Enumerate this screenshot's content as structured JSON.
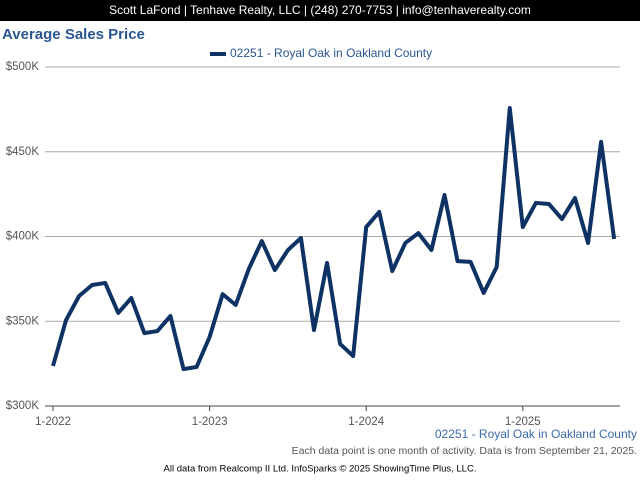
{
  "header": "Scott LaFond | Tenhave Realty, LLC | (248) 270-7753 | info@tenhaverealty.com",
  "chart_data": {
    "type": "line",
    "title": "Average Sales Price",
    "categories": [
      "1-2022",
      null,
      null,
      null,
      null,
      null,
      null,
      null,
      null,
      null,
      null,
      null,
      "1-2023",
      null,
      null,
      null,
      null,
      null,
      null,
      null,
      null,
      null,
      null,
      null,
      "1-2024",
      null,
      null,
      null,
      null,
      null,
      null,
      null,
      null,
      null,
      null,
      null,
      "1-2025",
      null,
      null,
      null,
      null,
      null,
      null,
      null
    ],
    "series": [
      {
        "name": "02251 - Royal Oak in Oakland County",
        "color": "#0d3263",
        "values": [
          323600,
          350700,
          364900,
          371400,
          372600,
          354900,
          363700,
          343000,
          344200,
          353100,
          321800,
          323000,
          340700,
          366000,
          359600,
          380800,
          397300,
          380200,
          392000,
          399100,
          344800,
          384400,
          336600,
          329500,
          405600,
          414500,
          379600,
          396200,
          402000,
          392000,
          424500,
          385500,
          385000,
          366700,
          382000,
          475800,
          405600,
          419800,
          419200,
          410300,
          422700,
          396200,
          455800,
          398500
        ]
      }
    ],
    "ylim": [
      300000,
      500000
    ],
    "yticks": [
      {
        "value": 300000,
        "label": "$300K"
      },
      {
        "value": 350000,
        "label": "$350K"
      },
      {
        "value": 400000,
        "label": "$400K"
      },
      {
        "value": 450000,
        "label": "$450K"
      },
      {
        "value": 500000,
        "label": "$500K"
      }
    ],
    "grid": true,
    "legend": "top",
    "area_label": "02251 - Royal Oak in Oakland County",
    "note": "Each data point is one month of activity. Data is from September 21, 2025.",
    "source": "All data from Realcomp II Ltd. InfoSparks © 2025 ShowingTime Plus, LLC."
  }
}
